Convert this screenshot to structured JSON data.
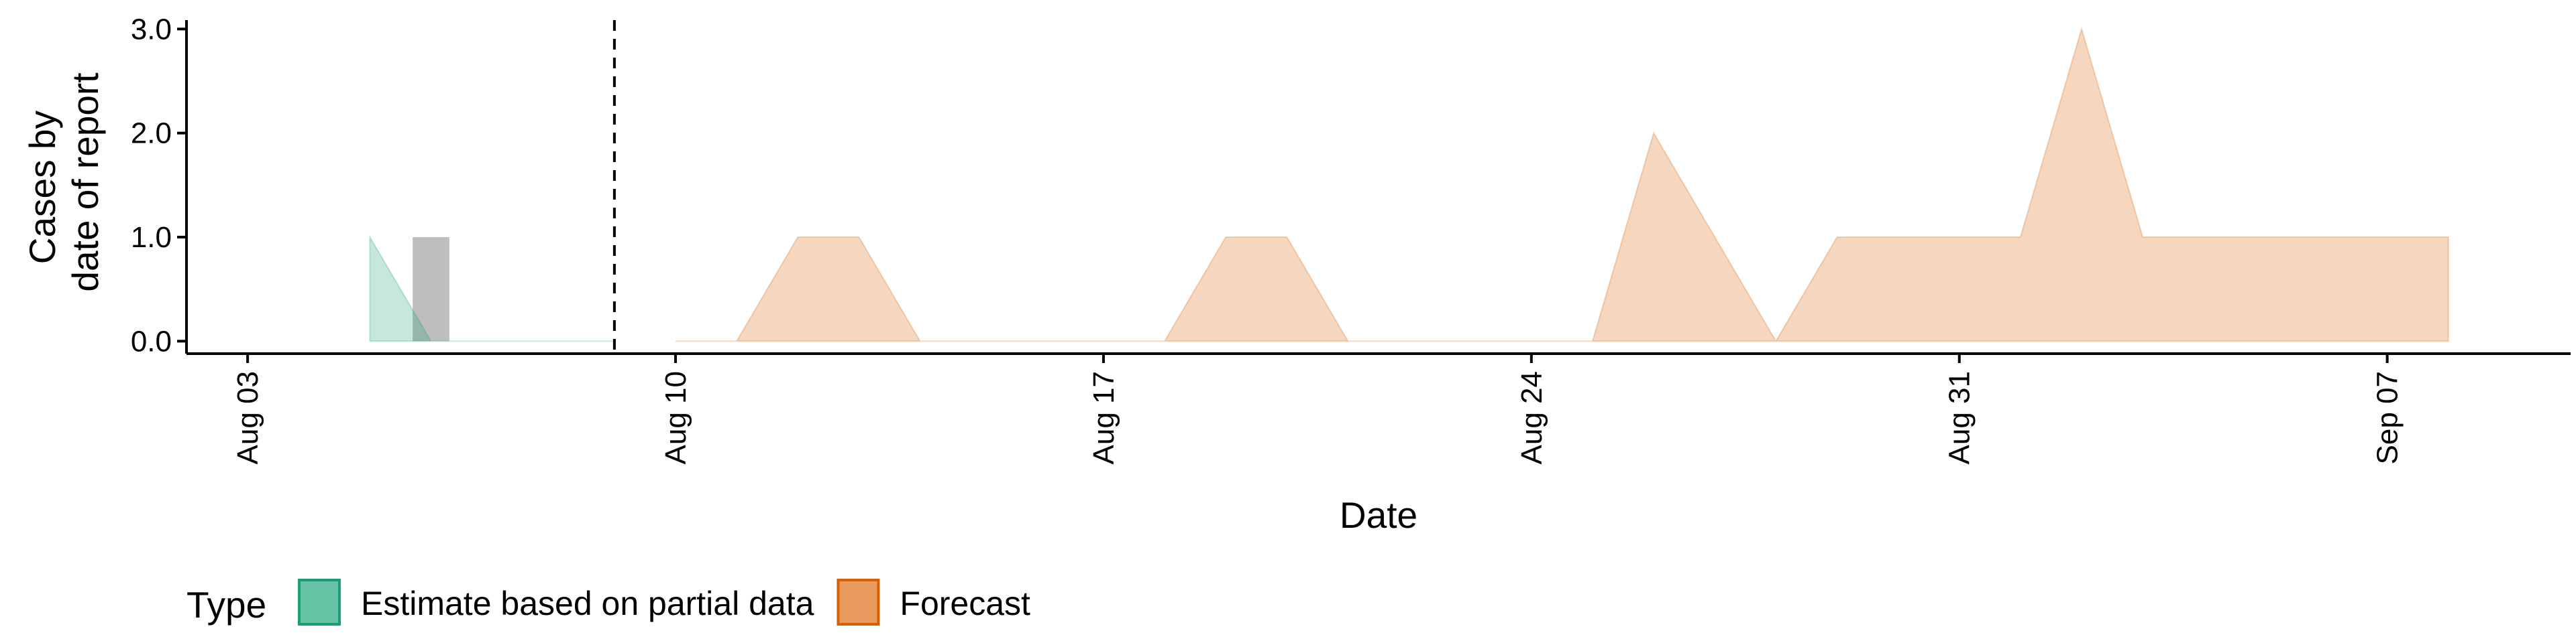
{
  "chart_data": {
    "type": "area",
    "xlabel": "Date",
    "ylabel_lines": [
      "Cases by",
      "date of report"
    ],
    "xlim": [
      "2020-08-02",
      "2020-09-10"
    ],
    "ylim": [
      -0.12,
      3.15
    ],
    "x_ticks": [
      {
        "date": "2020-08-03",
        "label": "Aug 03"
      },
      {
        "date": "2020-08-10",
        "label": "Aug 10"
      },
      {
        "date": "2020-08-17",
        "label": "Aug 17"
      },
      {
        "date": "2020-08-24",
        "label": "Aug 24"
      },
      {
        "date": "2020-08-31",
        "label": "Aug 31"
      },
      {
        "date": "2020-09-07",
        "label": "Sep 07"
      }
    ],
    "y_ticks": [
      {
        "value": 0,
        "label": "0.0"
      },
      {
        "value": 1,
        "label": "1.0"
      },
      {
        "value": 2,
        "label": "2.0"
      },
      {
        "value": 3,
        "label": "3.0"
      }
    ],
    "series": [
      {
        "name": "Estimate based on partial data",
        "color": "#1b9e77",
        "x": [
          "2020-08-05",
          "2020-08-06",
          "2020-08-07",
          "2020-08-08",
          "2020-08-09"
        ],
        "y": [
          1,
          0,
          0,
          0,
          0
        ]
      },
      {
        "name": "Forecast",
        "color": "#d95f02",
        "x": [
          "2020-08-10",
          "2020-08-11",
          "2020-08-12",
          "2020-08-13",
          "2020-08-14",
          "2020-08-15",
          "2020-08-16",
          "2020-08-17",
          "2020-08-18",
          "2020-08-19",
          "2020-08-20",
          "2020-08-21",
          "2020-08-22",
          "2020-08-23",
          "2020-08-24",
          "2020-08-25",
          "2020-08-26",
          "2020-08-27",
          "2020-08-28",
          "2020-08-29",
          "2020-08-30",
          "2020-08-31",
          "2020-09-01",
          "2020-09-02",
          "2020-09-03",
          "2020-09-04",
          "2020-09-05",
          "2020-09-06",
          "2020-09-07",
          "2020-09-08"
        ],
        "y": [
          0,
          0,
          1,
          1,
          0,
          0,
          0,
          0,
          0,
          1,
          1,
          0,
          0,
          0,
          0,
          0,
          2,
          1,
          0,
          1,
          1,
          1,
          1,
          3,
          1,
          1,
          1,
          1,
          1,
          1
        ]
      }
    ],
    "bars": [
      {
        "date": "2020-08-06",
        "value": 1,
        "color": "#bebebe"
      }
    ],
    "vline": {
      "date": "2020-08-09",
      "style": "dashed"
    },
    "legend": {
      "position": "bottom",
      "title": "Type",
      "items": [
        {
          "label": "Estimate based on partial data",
          "fill": "#66c2a5",
          "stroke": "#1b9e77"
        },
        {
          "label": "Forecast",
          "fill": "#e99a5e",
          "stroke": "#d95f02"
        }
      ]
    }
  }
}
